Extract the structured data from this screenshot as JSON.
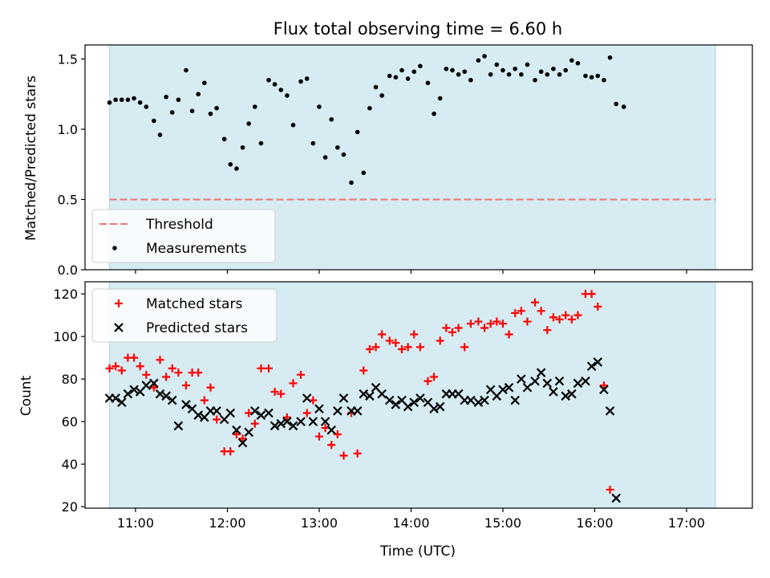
{
  "chart_data": [
    {
      "type": "scatter",
      "title": "Flux total observing time = 6.60 h",
      "xlabel": "",
      "ylabel": "Matched/Predicted stars",
      "xlim": [
        "10:27",
        "17:43"
      ],
      "ylim": [
        0,
        1.6
      ],
      "yticks": [
        0.0,
        0.5,
        1.0,
        1.5
      ],
      "ytick_labels": [
        "0.0",
        "0.5",
        "1.0",
        "1.5"
      ],
      "xticks": [
        "11:00",
        "12:00",
        "13:00",
        "14:00",
        "15:00",
        "16:00",
        "17:00"
      ],
      "shaded_span": [
        "10:43",
        "17:19"
      ],
      "threshold": 0.5,
      "legend": {
        "placement": "lower-left",
        "entries": [
          "Threshold",
          "Measurements"
        ]
      },
      "series": [
        {
          "name": "Measurements",
          "color": "#000000",
          "points": [
            [
              "10:43",
              1.19
            ],
            [
              "10:47",
              1.21
            ],
            [
              "10:51",
              1.21
            ],
            [
              "10:55",
              1.21
            ],
            [
              "10:59",
              1.22
            ],
            [
              "11:03",
              1.19
            ],
            [
              "11:07",
              1.16
            ],
            [
              "11:12",
              1.06
            ],
            [
              "11:16",
              0.96
            ],
            [
              "11:20",
              1.23
            ],
            [
              "11:24",
              1.12
            ],
            [
              "11:28",
              1.21
            ],
            [
              "11:33",
              1.42
            ],
            [
              "11:37",
              1.13
            ],
            [
              "11:41",
              1.25
            ],
            [
              "11:45",
              1.33
            ],
            [
              "11:49",
              1.11
            ],
            [
              "11:53",
              1.15
            ],
            [
              "11:58",
              0.93
            ],
            [
              "12:02",
              0.75
            ],
            [
              "12:06",
              0.72
            ],
            [
              "12:10",
              0.87
            ],
            [
              "12:14",
              1.04
            ],
            [
              "12:18",
              1.16
            ],
            [
              "12:22",
              0.9
            ],
            [
              "12:27",
              1.35
            ],
            [
              "12:31",
              1.32
            ],
            [
              "12:35",
              1.28
            ],
            [
              "12:39",
              1.24
            ],
            [
              "12:43",
              1.03
            ],
            [
              "12:48",
              1.34
            ],
            [
              "12:52",
              1.36
            ],
            [
              "12:56",
              0.9
            ],
            [
              "13:00",
              1.16
            ],
            [
              "13:04",
              0.8
            ],
            [
              "13:08",
              1.07
            ],
            [
              "13:12",
              0.87
            ],
            [
              "13:16",
              0.82
            ],
            [
              "13:21",
              0.62
            ],
            [
              "13:25",
              0.98
            ],
            [
              "13:29",
              0.69
            ],
            [
              "13:33",
              1.15
            ],
            [
              "13:37",
              1.3
            ],
            [
              "13:41",
              1.24
            ],
            [
              "13:46",
              1.38
            ],
            [
              "13:50",
              1.37
            ],
            [
              "13:54",
              1.42
            ],
            [
              "13:58",
              1.36
            ],
            [
              "14:02",
              1.41
            ],
            [
              "14:06",
              1.45
            ],
            [
              "14:11",
              1.33
            ],
            [
              "14:15",
              1.11
            ],
            [
              "14:19",
              1.22
            ],
            [
              "14:23",
              1.43
            ],
            [
              "14:27",
              1.42
            ],
            [
              "14:31",
              1.39
            ],
            [
              "14:35",
              1.41
            ],
            [
              "14:39",
              1.35
            ],
            [
              "14:44",
              1.49
            ],
            [
              "14:48",
              1.52
            ],
            [
              "14:52",
              1.39
            ],
            [
              "14:56",
              1.46
            ],
            [
              "15:00",
              1.42
            ],
            [
              "15:04",
              1.39
            ],
            [
              "15:08",
              1.43
            ],
            [
              "15:12",
              1.39
            ],
            [
              "15:16",
              1.46
            ],
            [
              "15:21",
              1.35
            ],
            [
              "15:25",
              1.41
            ],
            [
              "15:29",
              1.39
            ],
            [
              "15:33",
              1.43
            ],
            [
              "15:37",
              1.39
            ],
            [
              "15:41",
              1.42
            ],
            [
              "15:45",
              1.49
            ],
            [
              "15:49",
              1.47
            ],
            [
              "15:54",
              1.38
            ],
            [
              "15:58",
              1.37
            ],
            [
              "16:02",
              1.38
            ],
            [
              "16:06",
              1.35
            ],
            [
              "16:10",
              1.51
            ],
            [
              "16:14",
              1.18
            ],
            [
              "16:19",
              1.16
            ]
          ]
        },
        {
          "name": "Threshold",
          "color": "#f07575",
          "style": "dashed",
          "values": [
            0.5,
            0.5
          ]
        }
      ]
    },
    {
      "type": "scatter",
      "title": "",
      "xlabel": "Time (UTC)",
      "ylabel": "Count",
      "xlim": [
        "10:27",
        "17:43"
      ],
      "ylim": [
        19.3,
        125.7
      ],
      "yticks": [
        20,
        40,
        60,
        80,
        100,
        120
      ],
      "xticks": [
        "11:00",
        "12:00",
        "13:00",
        "14:00",
        "15:00",
        "16:00",
        "17:00"
      ],
      "shaded_span": [
        "10:43",
        "17:19"
      ],
      "legend": {
        "placement": "upper-left",
        "entries": [
          "Matched stars",
          "Predicted stars"
        ]
      },
      "series": [
        {
          "name": "Matched stars",
          "marker": "+",
          "color": "#ff0000",
          "points": [
            [
              "10:43",
              85
            ],
            [
              "10:47",
              86
            ],
            [
              "10:51",
              84
            ],
            [
              "10:55",
              90
            ],
            [
              "10:59",
              90
            ],
            [
              "11:03",
              86
            ],
            [
              "11:07",
              82
            ],
            [
              "11:12",
              76
            ],
            [
              "11:16",
              89
            ],
            [
              "11:20",
              81
            ],
            [
              "11:24",
              85
            ],
            [
              "11:28",
              83
            ],
            [
              "11:33",
              77
            ],
            [
              "11:37",
              83
            ],
            [
              "11:41",
              83
            ],
            [
              "11:45",
              70
            ],
            [
              "11:49",
              76
            ],
            [
              "11:53",
              61
            ],
            [
              "11:58",
              46
            ],
            [
              "12:02",
              46
            ],
            [
              "12:06",
              54
            ],
            [
              "12:10",
              52
            ],
            [
              "12:14",
              64
            ],
            [
              "12:18",
              59
            ],
            [
              "12:22",
              85
            ],
            [
              "12:27",
              85
            ],
            [
              "12:31",
              74
            ],
            [
              "12:35",
              73
            ],
            [
              "12:39",
              62
            ],
            [
              "12:43",
              78
            ],
            [
              "12:48",
              82
            ],
            [
              "12:52",
              64
            ],
            [
              "12:56",
              70
            ],
            [
              "13:00",
              53
            ],
            [
              "13:04",
              57
            ],
            [
              "13:08",
              49
            ],
            [
              "13:12",
              54
            ],
            [
              "13:16",
              44
            ],
            [
              "13:21",
              64
            ],
            [
              "13:25",
              45
            ],
            [
              "13:29",
              84
            ],
            [
              "13:33",
              94
            ],
            [
              "13:37",
              95
            ],
            [
              "13:41",
              101
            ],
            [
              "13:46",
              98
            ],
            [
              "13:50",
              97
            ],
            [
              "13:54",
              94
            ],
            [
              "13:58",
              95
            ],
            [
              "14:02",
              101
            ],
            [
              "14:06",
              95
            ],
            [
              "14:11",
              79
            ],
            [
              "14:15",
              81
            ],
            [
              "14:19",
              98
            ],
            [
              "14:23",
              104
            ],
            [
              "14:27",
              102
            ],
            [
              "14:31",
              104
            ],
            [
              "14:35",
              95
            ],
            [
              "14:39",
              106
            ],
            [
              "14:44",
              107
            ],
            [
              "14:48",
              104
            ],
            [
              "14:52",
              106
            ],
            [
              "14:56",
              107
            ],
            [
              "15:00",
              106
            ],
            [
              "15:04",
              101
            ],
            [
              "15:08",
              111
            ],
            [
              "15:12",
              112
            ],
            [
              "15:16",
              107
            ],
            [
              "15:21",
              116
            ],
            [
              "15:25",
              112
            ],
            [
              "15:29",
              103
            ],
            [
              "15:33",
              109
            ],
            [
              "15:37",
              108
            ],
            [
              "15:41",
              110
            ],
            [
              "15:45",
              108
            ],
            [
              "15:49",
              110
            ],
            [
              "15:54",
              120
            ],
            [
              "15:58",
              120
            ],
            [
              "16:02",
              114
            ],
            [
              "16:06",
              77
            ],
            [
              "16:10",
              28
            ]
          ]
        },
        {
          "name": "Predicted stars",
          "marker": "x",
          "color": "#000000",
          "points": [
            [
              "10:43",
              71
            ],
            [
              "10:47",
              71
            ],
            [
              "10:51",
              69
            ],
            [
              "10:55",
              73
            ],
            [
              "10:59",
              75
            ],
            [
              "11:03",
              74
            ],
            [
              "11:07",
              77
            ],
            [
              "11:12",
              78
            ],
            [
              "11:16",
              73
            ],
            [
              "11:20",
              72
            ],
            [
              "11:24",
              70
            ],
            [
              "11:28",
              58
            ],
            [
              "11:33",
              68
            ],
            [
              "11:37",
              66
            ],
            [
              "11:41",
              63
            ],
            [
              "11:45",
              62
            ],
            [
              "11:49",
              65
            ],
            [
              "11:53",
              65
            ],
            [
              "11:58",
              61
            ],
            [
              "12:02",
              64
            ],
            [
              "12:06",
              56
            ],
            [
              "12:10",
              50
            ],
            [
              "12:14",
              55
            ],
            [
              "12:18",
              65
            ],
            [
              "12:22",
              63
            ],
            [
              "12:27",
              64
            ],
            [
              "12:31",
              58
            ],
            [
              "12:35",
              59
            ],
            [
              "12:39",
              60
            ],
            [
              "12:43",
              58
            ],
            [
              "12:48",
              60
            ],
            [
              "12:52",
              71
            ],
            [
              "12:56",
              60
            ],
            [
              "13:00",
              66
            ],
            [
              "13:04",
              60
            ],
            [
              "13:08",
              56
            ],
            [
              "13:12",
              65
            ],
            [
              "13:16",
              71
            ],
            [
              "13:21",
              65
            ],
            [
              "13:25",
              65
            ],
            [
              "13:29",
              73
            ],
            [
              "13:33",
              72
            ],
            [
              "13:37",
              76
            ],
            [
              "13:41",
              73
            ],
            [
              "13:46",
              70
            ],
            [
              "13:50",
              68
            ],
            [
              "13:54",
              70
            ],
            [
              "13:58",
              67
            ],
            [
              "14:02",
              69
            ],
            [
              "14:06",
              71
            ],
            [
              "14:11",
              69
            ],
            [
              "14:15",
              66
            ],
            [
              "14:19",
              67
            ],
            [
              "14:23",
              73
            ],
            [
              "14:27",
              73
            ],
            [
              "14:31",
              73
            ],
            [
              "14:35",
              70
            ],
            [
              "14:39",
              70
            ],
            [
              "14:44",
              69
            ],
            [
              "14:48",
              70
            ],
            [
              "14:52",
              75
            ],
            [
              "14:56",
              72
            ],
            [
              "15:00",
              75
            ],
            [
              "15:04",
              76
            ],
            [
              "15:08",
              70
            ],
            [
              "15:12",
              80
            ],
            [
              "15:16",
              76
            ],
            [
              "15:21",
              79
            ],
            [
              "15:25",
              83
            ],
            [
              "15:29",
              78
            ],
            [
              "15:33",
              74
            ],
            [
              "15:37",
              79
            ],
            [
              "15:41",
              72
            ],
            [
              "15:45",
              73
            ],
            [
              "15:49",
              78
            ],
            [
              "15:54",
              79
            ],
            [
              "15:58",
              86
            ],
            [
              "16:02",
              88
            ],
            [
              "16:06",
              75
            ],
            [
              "16:10",
              65
            ],
            [
              "16:14",
              24
            ]
          ]
        }
      ]
    }
  ],
  "colors": {
    "span_fill": "#add8e6",
    "measurement": "#000000",
    "threshold": "#f07575",
    "matched": "#ff0000",
    "predicted": "#000000"
  }
}
